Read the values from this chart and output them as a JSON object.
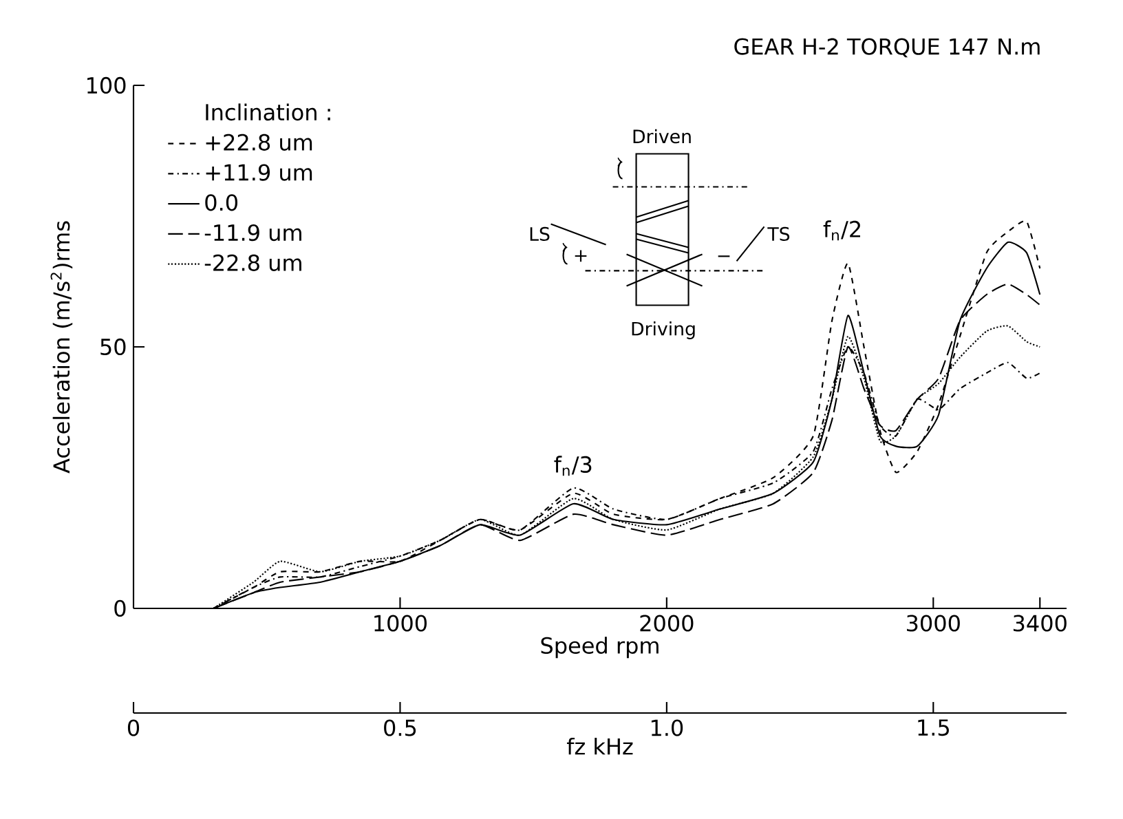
{
  "chart_data": {
    "type": "line",
    "title": "GEAR H-2 TORQUE 147 N.m",
    "xlabel": "Speed rpm",
    "ylabel": "Acceleration (m/s$^{2}$)rms",
    "x2label": "fz kHz",
    "legend_title": "Inclination :",
    "legend": "top left",
    "grid": false,
    "xlim": [
      0,
      3500
    ],
    "xticks": [
      1000,
      2000,
      3000,
      3400
    ],
    "ylim": [
      0,
      100
    ],
    "yticks": [
      0,
      50,
      100
    ],
    "x2lim": [
      0,
      1.75
    ],
    "x2ticks": [
      0,
      0.5,
      {
        "value": 1.0,
        "label": "1.0"
      },
      1.5
    ],
    "x": [
      300,
      450,
      550,
      700,
      850,
      1000,
      1150,
      1300,
      1450,
      1650,
      1800,
      2000,
      2200,
      2400,
      2550,
      2620,
      2680,
      2740,
      2800,
      2860,
      2940,
      3020,
      3100,
      3200,
      3280,
      3350,
      3400
    ],
    "series": [
      {
        "name": "+22.8 um",
        "color": "#000000",
        "line_style": "dashed",
        "values": [
          0,
          4,
          7,
          7,
          9,
          9,
          13,
          17,
          15,
          22,
          18,
          17,
          21,
          25,
          33,
          55,
          66,
          50,
          34,
          26,
          30,
          39,
          52,
          68,
          72,
          74,
          65
        ]
      },
      {
        "name": "+11.9 um",
        "color": "#000000",
        "line_style": "dashdot",
        "values": [
          0,
          4,
          6,
          6,
          8,
          10,
          13,
          17,
          15,
          23,
          19,
          17,
          21,
          24,
          30,
          42,
          50,
          45,
          35,
          33,
          40,
          38,
          42,
          45,
          47,
          44,
          45
        ]
      },
      {
        "name": "0.0",
        "color": "#000000",
        "line_style": "solid",
        "values": [
          0,
          3,
          4,
          5,
          7,
          9,
          12,
          16,
          14,
          20,
          17,
          16,
          19,
          22,
          28,
          40,
          56,
          45,
          33,
          31,
          31,
          37,
          55,
          65,
          70,
          68,
          60
        ]
      },
      {
        "name": "-11.9 um",
        "color": "#000000",
        "line_style": "longdash",
        "values": [
          0,
          3,
          5,
          6,
          7,
          9,
          12,
          16,
          13,
          18,
          16,
          14,
          17,
          20,
          26,
          36,
          50,
          42,
          35,
          34,
          40,
          44,
          55,
          60,
          62,
          60,
          58
        ]
      },
      {
        "name": "-22.8 um",
        "color": "#000000",
        "line_style": "dotted",
        "values": [
          0,
          5,
          9,
          7,
          9,
          10,
          13,
          17,
          14,
          21,
          17,
          15,
          19,
          22,
          29,
          40,
          52,
          44,
          32,
          33,
          40,
          43,
          48,
          53,
          54,
          51,
          50
        ]
      }
    ],
    "annotations": [
      {
        "text": "f$_{n}$/3",
        "x": 1650,
        "y": 22
      },
      {
        "text": "f$_{n}$/2",
        "x": 2660,
        "y": 67
      },
      "Driven",
      "Driving",
      "LS",
      "TS",
      "+",
      "−"
    ]
  }
}
